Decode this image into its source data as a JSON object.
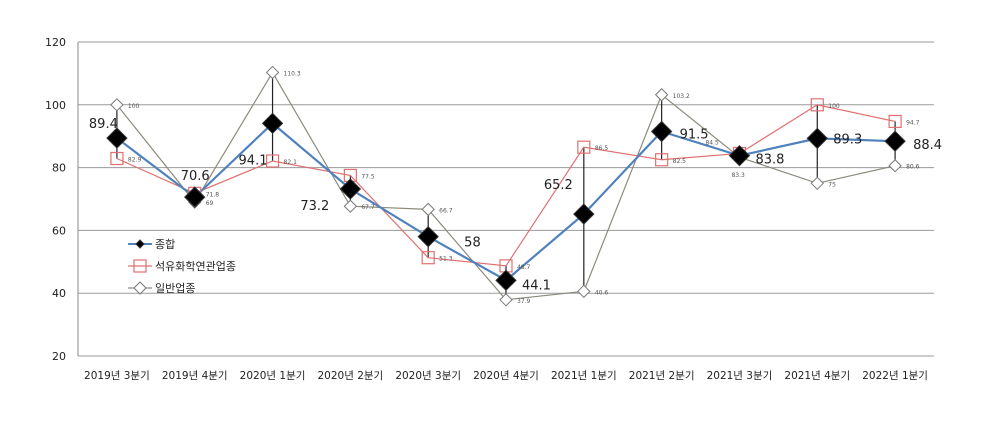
{
  "chart_data": {
    "type": "line",
    "title": "",
    "xlabel": "",
    "ylabel": "",
    "ylim": [
      20,
      120
    ],
    "yticks": [
      20,
      40,
      60,
      80,
      100,
      120
    ],
    "grid": true,
    "legend_position": "left-middle",
    "categories": [
      "2019년 3분기",
      "2019년 4분기",
      "2020년 1분기",
      "2020년 2분기",
      "2020년 3분기",
      "2020년 4분기",
      "2021년 1분기",
      "2021년 2분기",
      "2021년 3분기",
      "2021년 4분기",
      "2022년 1분기"
    ],
    "series": [
      {
        "name": "종합",
        "color": "#4f81bd",
        "marker": "filled-diamond",
        "values": [
          89.4,
          70.6,
          94.1,
          73.2,
          58,
          44.1,
          65.2,
          91.5,
          83.8,
          89.3,
          88.4
        ]
      },
      {
        "name": "석유화학연관업종",
        "color": "#e07070",
        "marker": "open-square",
        "values": [
          82.9,
          71.8,
          82.1,
          77.5,
          51.3,
          48.7,
          86.5,
          82.5,
          84.5,
          100,
          94.7
        ]
      },
      {
        "name": "일반업종",
        "color": "#8c8a7c",
        "marker": "open-diamond",
        "values": [
          100,
          69,
          110.3,
          67.7,
          66.7,
          37.9,
          40.6,
          103.2,
          83.3,
          75,
          80.6
        ]
      }
    ],
    "high_low_lines": true
  }
}
